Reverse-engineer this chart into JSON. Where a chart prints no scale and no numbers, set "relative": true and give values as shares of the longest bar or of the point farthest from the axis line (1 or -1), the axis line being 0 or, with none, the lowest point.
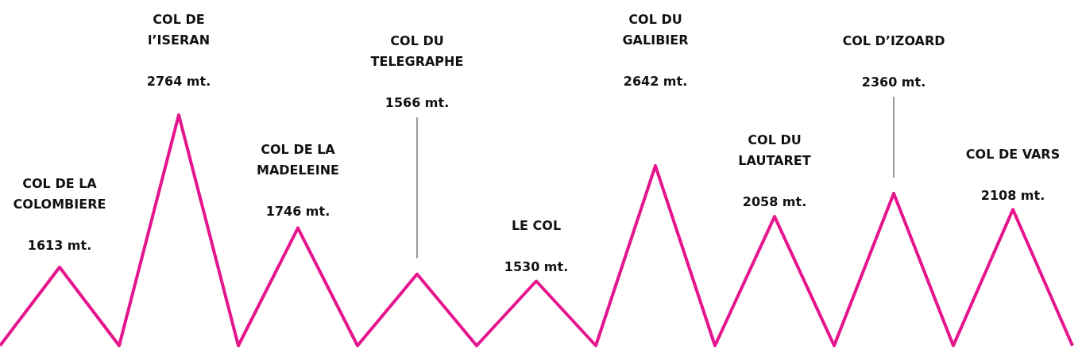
{
  "chart_data": {
    "type": "line",
    "relative": true,
    "line_style": "solid",
    "categories": [
      null,
      null,
      null,
      null,
      null,
      null,
      null,
      null,
      null,
      null,
      null,
      null,
      null,
      null,
      null,
      null,
      null,
      null,
      null
    ],
    "series": [
      {
        "color": "#e5158e",
        "values": [
          0,
          0.34,
          0,
          1,
          0,
          0.51,
          0,
          0.31,
          0,
          0.28,
          0,
          0.78,
          0,
          0.56,
          0,
          0.66,
          0,
          0.59,
          0
        ]
      }
    ],
    "annotations": [
      "COL DE LA\nCOLOMBIERE\n\n1613 mt.",
      "COL DE\nl’ISERAN\n\n2764 mt.",
      "COL DE LA\nMADELEINE\n\n1746 mt.",
      "COL DU\nTELEGRAPHE\n\n1566 mt.",
      "LE COL\n\n1530 mt.",
      "COL DU\nGALIBIER\n\n2642 mt.",
      "COL DU\nLAUTARET\n\n2058 mt.",
      "COL D’IZOARD\n\n2360 mt.",
      "COL DE VARS\n\n2108 mt."
    ]
  }
}
